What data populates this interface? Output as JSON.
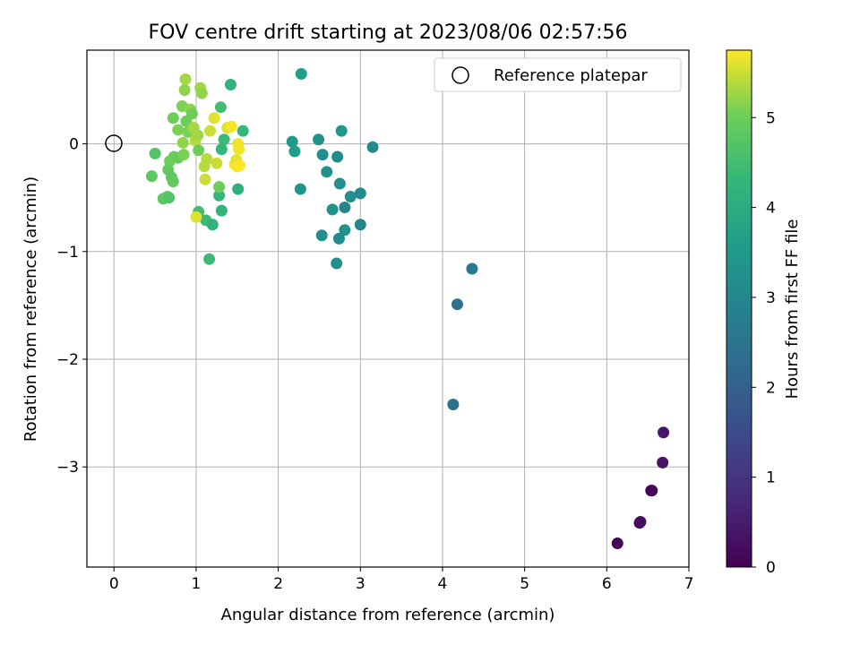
{
  "chart_data": {
    "type": "scatter",
    "title": "FOV centre drift starting at 2023/08/06 02:57:56",
    "xlabel": "Angular distance from reference (arcmin)",
    "ylabel": "Rotation from reference (arcmin)",
    "xlim": [
      -0.33,
      7.0
    ],
    "ylim": [
      -3.93,
      0.87
    ],
    "xticks": [
      0,
      1,
      2,
      3,
      4,
      5,
      6,
      7
    ],
    "yticks": [
      0,
      -1,
      -2,
      -3
    ],
    "xtick_labels": [
      "0",
      "1",
      "2",
      "3",
      "4",
      "5",
      "6",
      "7"
    ],
    "ytick_labels": [
      "0",
      "−1",
      "−2",
      "−3"
    ],
    "grid": true,
    "legend": {
      "placement": "top-right",
      "entries": [
        "Reference platepar"
      ]
    },
    "reference_point": {
      "x": 0,
      "y": 0,
      "marker": "open-circle",
      "label": "Reference platepar"
    },
    "colorbar": {
      "label": "Hours from first FF file",
      "colormap": "viridis",
      "min": 0,
      "max": 5.75,
      "ticks": [
        0,
        1,
        2,
        3,
        4,
        5
      ],
      "tick_labels": [
        "0",
        "1",
        "2",
        "3",
        "4",
        "5"
      ]
    },
    "points": [
      {
        "x": 6.13,
        "y": -3.71,
        "c": 0.05
      },
      {
        "x": 6.4,
        "y": -3.52,
        "c": 0.15
      },
      {
        "x": 6.41,
        "y": -3.51,
        "c": 0.25
      },
      {
        "x": 6.54,
        "y": -3.22,
        "c": 0.0
      },
      {
        "x": 6.55,
        "y": -3.22,
        "c": 0.1
      },
      {
        "x": 6.68,
        "y": -2.96,
        "c": 0.35
      },
      {
        "x": 6.69,
        "y": -2.68,
        "c": 0.4
      },
      {
        "x": 4.13,
        "y": -2.42,
        "c": 2.4
      },
      {
        "x": 4.18,
        "y": -1.49,
        "c": 2.5
      },
      {
        "x": 4.36,
        "y": -1.16,
        "c": 2.65
      },
      {
        "x": 2.28,
        "y": 0.65,
        "c": 3.6
      },
      {
        "x": 2.17,
        "y": 0.02,
        "c": 3.5
      },
      {
        "x": 2.2,
        "y": -0.07,
        "c": 3.6
      },
      {
        "x": 2.27,
        "y": -0.42,
        "c": 3.4
      },
      {
        "x": 2.49,
        "y": 0.04,
        "c": 3.3
      },
      {
        "x": 2.54,
        "y": -0.1,
        "c": 3.2
      },
      {
        "x": 2.59,
        "y": -0.26,
        "c": 3.3
      },
      {
        "x": 2.53,
        "y": -0.85,
        "c": 3.2
      },
      {
        "x": 2.66,
        "y": -0.61,
        "c": 3.3
      },
      {
        "x": 2.72,
        "y": -0.12,
        "c": 3.1
      },
      {
        "x": 2.75,
        "y": -0.37,
        "c": 3.2
      },
      {
        "x": 2.77,
        "y": 0.12,
        "c": 3.4
      },
      {
        "x": 2.74,
        "y": -0.88,
        "c": 3.1
      },
      {
        "x": 2.81,
        "y": -0.59,
        "c": 3.0
      },
      {
        "x": 2.81,
        "y": -0.8,
        "c": 3.3
      },
      {
        "x": 2.88,
        "y": -0.49,
        "c": 3.2
      },
      {
        "x": 2.71,
        "y": -1.11,
        "c": 3.2
      },
      {
        "x": 3.0,
        "y": -0.46,
        "c": 3.1
      },
      {
        "x": 3.0,
        "y": -0.75,
        "c": 3.0
      },
      {
        "x": 3.15,
        "y": -0.03,
        "c": 3.1
      },
      {
        "x": 1.42,
        "y": 0.55,
        "c": 4.2
      },
      {
        "x": 1.57,
        "y": 0.12,
        "c": 4.3
      },
      {
        "x": 1.51,
        "y": -0.42,
        "c": 4.1
      },
      {
        "x": 1.31,
        "y": -0.62,
        "c": 4.2
      },
      {
        "x": 1.28,
        "y": -0.48,
        "c": 4.3
      },
      {
        "x": 1.12,
        "y": -0.71,
        "c": 4.4
      },
      {
        "x": 1.2,
        "y": -0.75,
        "c": 4.2
      },
      {
        "x": 1.16,
        "y": -1.07,
        "c": 4.4
      },
      {
        "x": 1.03,
        "y": -0.63,
        "c": 4.5
      },
      {
        "x": 1.31,
        "y": -0.05,
        "c": 4.3
      },
      {
        "x": 1.34,
        "y": 0.04,
        "c": 4.4
      },
      {
        "x": 1.3,
        "y": 0.34,
        "c": 4.5
      },
      {
        "x": 0.5,
        "y": -0.09,
        "c": 4.7
      },
      {
        "x": 0.46,
        "y": -0.3,
        "c": 4.8
      },
      {
        "x": 0.6,
        "y": -0.51,
        "c": 4.8
      },
      {
        "x": 0.65,
        "y": -0.49,
        "c": 4.9
      },
      {
        "x": 0.67,
        "y": -0.5,
        "c": 4.7
      },
      {
        "x": 0.66,
        "y": -0.24,
        "c": 4.9
      },
      {
        "x": 0.7,
        "y": -0.31,
        "c": 4.8
      },
      {
        "x": 0.72,
        "y": -0.35,
        "c": 4.9
      },
      {
        "x": 0.68,
        "y": -0.16,
        "c": 5.0
      },
      {
        "x": 0.73,
        "y": -0.12,
        "c": 5.0
      },
      {
        "x": 0.78,
        "y": -0.13,
        "c": 4.9
      },
      {
        "x": 0.72,
        "y": 0.24,
        "c": 5.0
      },
      {
        "x": 0.78,
        "y": 0.13,
        "c": 5.1
      },
      {
        "x": 0.83,
        "y": 0.35,
        "c": 5.1
      },
      {
        "x": 0.86,
        "y": 0.5,
        "c": 5.2
      },
      {
        "x": 0.87,
        "y": 0.6,
        "c": 5.3
      },
      {
        "x": 0.88,
        "y": 0.21,
        "c": 5.0
      },
      {
        "x": 0.9,
        "y": 0.11,
        "c": 5.1
      },
      {
        "x": 0.93,
        "y": 0.32,
        "c": 5.2
      },
      {
        "x": 0.84,
        "y": 0.01,
        "c": 5.2
      },
      {
        "x": 0.85,
        "y": -0.1,
        "c": 5.1
      },
      {
        "x": 0.95,
        "y": 0.28,
        "c": 5.0
      },
      {
        "x": 0.97,
        "y": 0.15,
        "c": 5.3
      },
      {
        "x": 0.99,
        "y": 0.03,
        "c": 5.4
      },
      {
        "x": 1.02,
        "y": 0.08,
        "c": 5.3
      },
      {
        "x": 1.03,
        "y": -0.06,
        "c": 5.0
      },
      {
        "x": 1.05,
        "y": 0.52,
        "c": 5.3
      },
      {
        "x": 1.07,
        "y": 0.47,
        "c": 5.2
      },
      {
        "x": 1.1,
        "y": -0.21,
        "c": 5.4
      },
      {
        "x": 1.11,
        "y": -0.33,
        "c": 5.5
      },
      {
        "x": 1.13,
        "y": -0.14,
        "c": 5.4
      },
      {
        "x": 1.17,
        "y": 0.12,
        "c": 5.5
      },
      {
        "x": 1.22,
        "y": 0.24,
        "c": 5.6
      },
      {
        "x": 1.25,
        "y": -0.18,
        "c": 5.5
      },
      {
        "x": 1.28,
        "y": -0.4,
        "c": 5.0
      },
      {
        "x": 1.0,
        "y": -0.68,
        "c": 5.6
      },
      {
        "x": 1.38,
        "y": 0.15,
        "c": 5.6
      },
      {
        "x": 1.43,
        "y": 0.16,
        "c": 5.7
      },
      {
        "x": 1.47,
        "y": -0.19,
        "c": 5.7
      },
      {
        "x": 1.49,
        "y": -0.15,
        "c": 5.6
      },
      {
        "x": 1.5,
        "y": -0.21,
        "c": 5.7
      },
      {
        "x": 1.51,
        "y": 0.0,
        "c": 5.65
      },
      {
        "x": 1.52,
        "y": -0.05,
        "c": 5.7
      },
      {
        "x": 1.53,
        "y": -0.2,
        "c": 5.75
      }
    ]
  }
}
